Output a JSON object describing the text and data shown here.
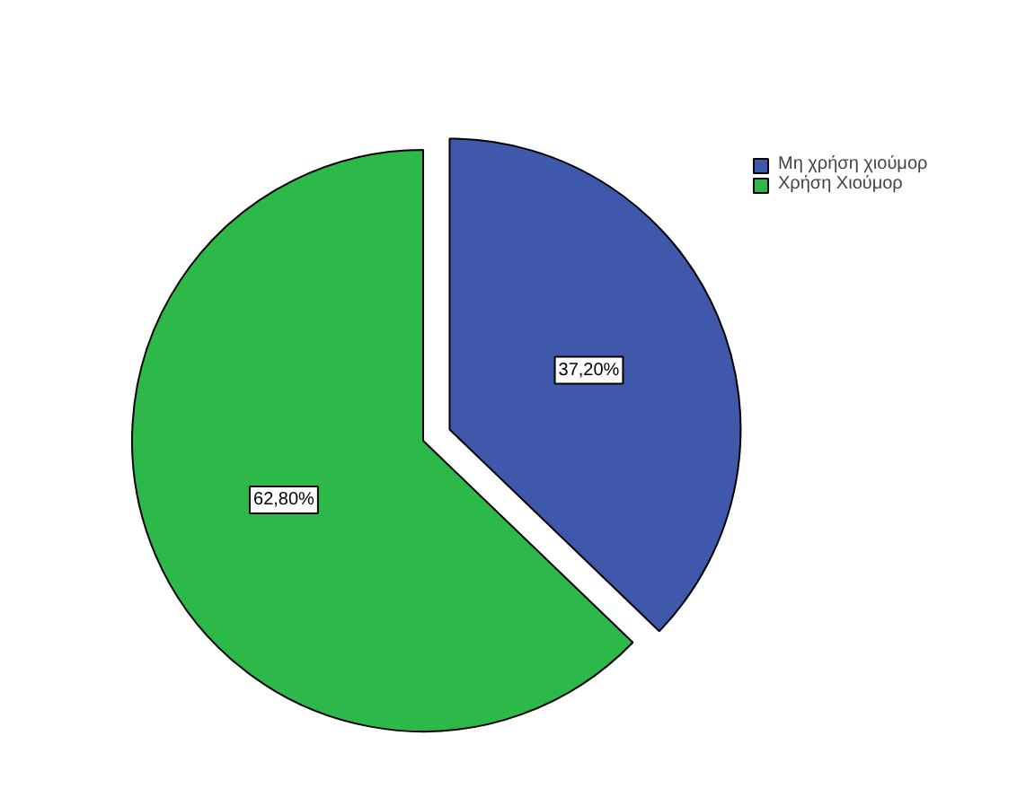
{
  "chart_data": {
    "type": "pie",
    "categories": [
      "Μη χρήση χιούμορ",
      "Χρήση Χιούμορ"
    ],
    "values": [
      37.2,
      62.8
    ],
    "colors": [
      "#3f58ab",
      "#2db84a"
    ],
    "value_labels": [
      "37,20%",
      "62,80%"
    ],
    "legend": "top right"
  }
}
